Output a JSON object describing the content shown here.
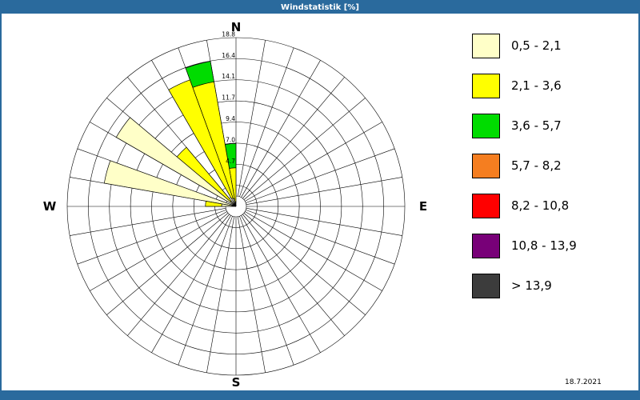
{
  "window": {
    "title": "Windstatistik [%]"
  },
  "theme": {
    "accent": "#2A6A9D",
    "background": "#FFFFFF",
    "grid_color": "#000000"
  },
  "footer": {
    "date": "18.7.2021"
  },
  "compass": {
    "north": "N",
    "east": "E",
    "south": "S",
    "west": "W"
  },
  "chart_data": {
    "type": "windrose",
    "title": "Windstatistik [%]",
    "units": "percent",
    "sector_width_deg": 10,
    "radial_axis": {
      "max": 18.8,
      "ring_step": 2.35,
      "tick_labels": [
        "4.7",
        "7.0",
        "9.4",
        "11.7",
        "14.1",
        "16.4",
        "18.8"
      ]
    },
    "speed_classes": [
      {
        "label": "0,5 - 2,1",
        "color": "#FFFFC8"
      },
      {
        "label": "2,1 - 3,6",
        "color": "#FFFF00"
      },
      {
        "label": "3,6 - 5,7",
        "color": "#00DC00"
      },
      {
        "label": "5,7 - 8,2",
        "color": "#F57E20"
      },
      {
        "label": "8,2 - 10,8",
        "color": "#FF0000"
      },
      {
        "label": "10,8 - 13,9",
        "color": "#780078"
      },
      {
        "label": "> 13,9",
        "color": "#3C3C3C"
      }
    ],
    "petals": [
      {
        "direction_deg": 355,
        "values": [
          0.5,
          3.8,
          2.7,
          0,
          0,
          0,
          0
        ]
      },
      {
        "direction_deg": 345,
        "values": [
          0.9,
          13.2,
          2.3,
          0,
          0,
          0,
          0
        ]
      },
      {
        "direction_deg": 335,
        "values": [
          1.0,
          14.0,
          0,
          0,
          0,
          0,
          0
        ]
      },
      {
        "direction_deg": 315,
        "values": [
          0.8,
          7.8,
          0,
          0,
          0,
          0,
          0
        ]
      },
      {
        "direction_deg": 305,
        "values": [
          15.4,
          0,
          0,
          0,
          0,
          0,
          0
        ]
      },
      {
        "direction_deg": 285,
        "values": [
          14.9,
          0,
          0,
          0,
          0,
          0,
          0
        ]
      },
      {
        "direction_deg": 275,
        "values": [
          1.6,
          1.8,
          0,
          0,
          0,
          0,
          0
        ]
      }
    ]
  }
}
